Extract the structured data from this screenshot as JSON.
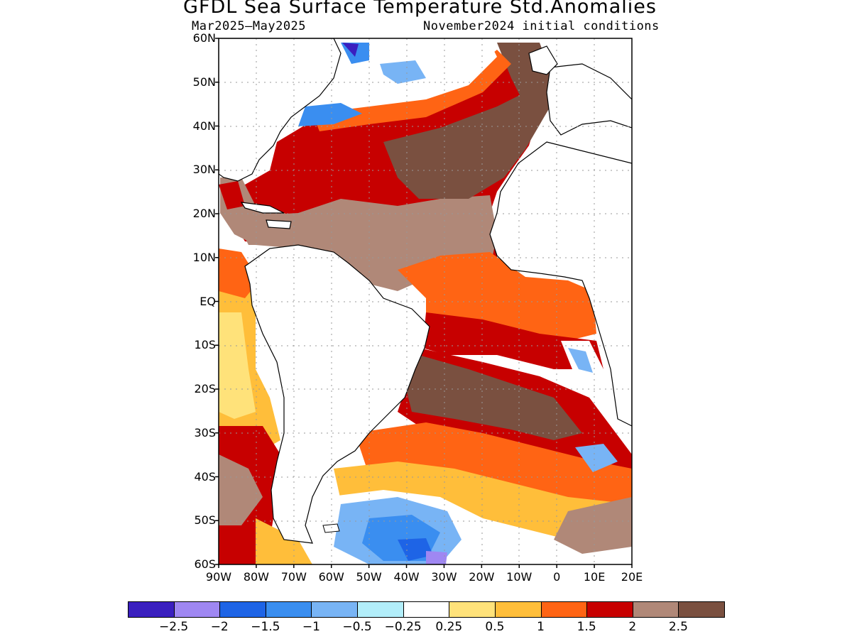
{
  "title": "GFDL Sea Surface Temperature Std.Anomalies",
  "subtitle_left": "Mar2025–May2025",
  "subtitle_right": "November2024 initial conditions",
  "lat_labels": [
    "60N",
    "50N",
    "40N",
    "30N",
    "20N",
    "10N",
    "EQ",
    "10S",
    "20S",
    "30S",
    "40S",
    "50S",
    "60S"
  ],
  "lon_labels": [
    "90W",
    "80W",
    "70W",
    "60W",
    "50W",
    "40W",
    "30W",
    "20W",
    "10W",
    "0",
    "10E",
    "20E"
  ],
  "colorbar": {
    "colors": [
      "#3a1fbf",
      "#9f87f2",
      "#1e64e6",
      "#3a8ef0",
      "#78b4f5",
      "#b2eefa",
      "#ffffff",
      "#ffe27a",
      "#ffbe3a",
      "#ff6414",
      "#c70000",
      "#b08878",
      "#7a5040"
    ],
    "labels": [
      "−2.5",
      "−2",
      "−1.5",
      "−1",
      "−0.5",
      "−0.25",
      "0.25",
      "0.5",
      "1",
      "1.5",
      "2",
      "2.5"
    ]
  }
}
